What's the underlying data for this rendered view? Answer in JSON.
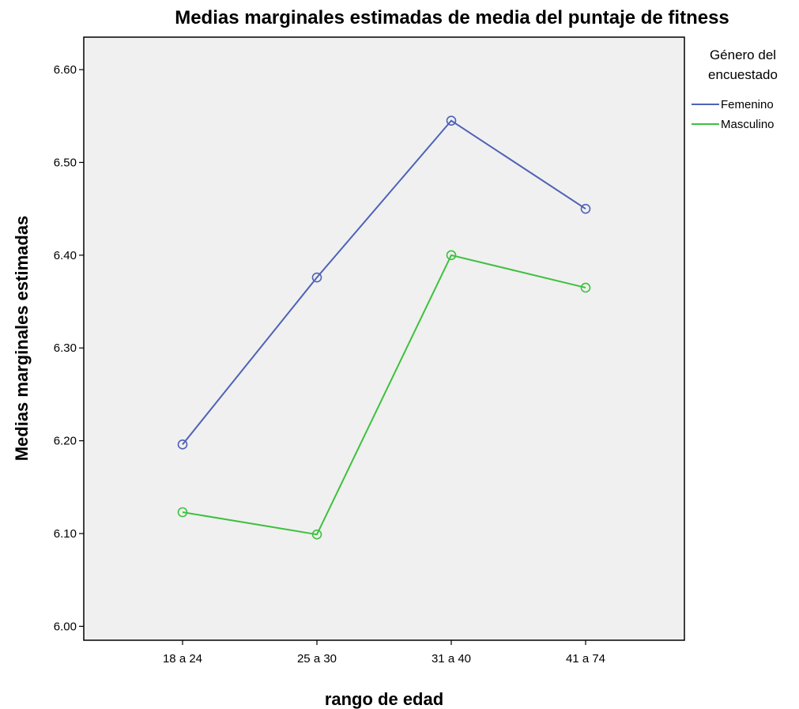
{
  "chart_data": {
    "type": "line",
    "title": "Medias marginales estimadas de media del puntaje de fitness",
    "xlabel": "rango de edad",
    "ylabel": "Medias marginales estimadas",
    "categories": [
      "18 a 24",
      "25 a 30",
      "31 a 40",
      "41 a 74"
    ],
    "ylim": [
      5.985,
      6.635
    ],
    "yticks": [
      6.0,
      6.1,
      6.2,
      6.3,
      6.4,
      6.5,
      6.6
    ],
    "ytick_labels": [
      "6.00",
      "6.10",
      "6.20",
      "6.30",
      "6.40",
      "6.50",
      "6.60"
    ],
    "grid": false,
    "marker": "open-circle",
    "background": "#f0f0f0",
    "legend": {
      "title_lines": [
        "Género del",
        "encuestado"
      ],
      "position": "right"
    },
    "series": [
      {
        "name": "Femenino",
        "color": "#4e62b8",
        "values": [
          6.196,
          6.376,
          6.545,
          6.45
        ]
      },
      {
        "name": "Masculino",
        "color": "#3dc13d",
        "values": [
          6.123,
          6.099,
          6.4,
          6.365
        ]
      }
    ]
  }
}
